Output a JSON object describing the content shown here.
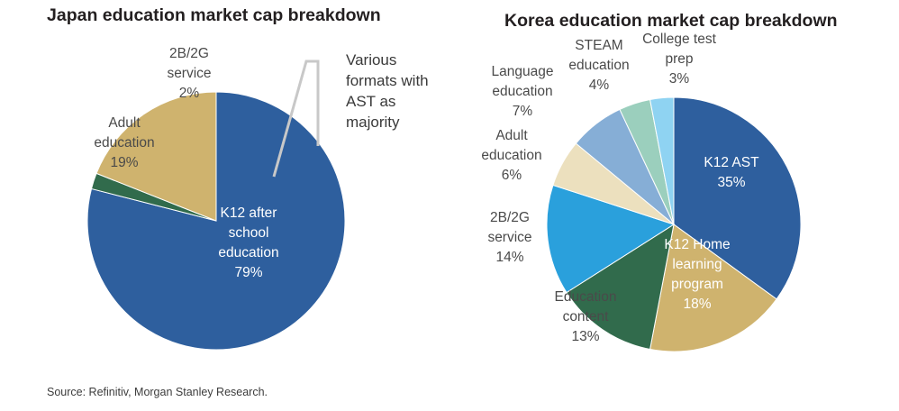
{
  "footer": {
    "source": "Source: Refinitiv, Morgan Stanley Research."
  },
  "chart_data": [
    {
      "type": "pie",
      "title": "Japan education market cap breakdown",
      "unit": "%",
      "slices": [
        {
          "label": [
            "K12 after",
            "school",
            "education"
          ],
          "value": 79,
          "pct_label": "79%",
          "color": "#2e5f9e"
        },
        {
          "label": [
            "2B/2G",
            "service"
          ],
          "value": 2,
          "pct_label": "2%",
          "color": "#316b4c"
        },
        {
          "label": [
            "Adult",
            "education"
          ],
          "value": 19,
          "pct_label": "19%",
          "color": "#cfb36e"
        }
      ],
      "annotation": [
        "Various",
        "formats with",
        "AST as",
        "majority"
      ]
    },
    {
      "type": "pie",
      "title": "Korea education market cap breakdown",
      "unit": "%",
      "slices": [
        {
          "label": [
            "K12 AST"
          ],
          "value": 35,
          "pct_label": "35%",
          "color": "#2e5f9e"
        },
        {
          "label": [
            "K12 Home",
            "learning",
            "program"
          ],
          "value": 18,
          "pct_label": "18%",
          "color": "#cfb36e"
        },
        {
          "label": [
            "Education",
            "content"
          ],
          "value": 13,
          "pct_label": "13%",
          "color": "#316b4c"
        },
        {
          "label": [
            "2B/2G",
            "service"
          ],
          "value": 14,
          "pct_label": "14%",
          "color": "#2aa0dc"
        },
        {
          "label": [
            "Adult",
            "education"
          ],
          "value": 6,
          "pct_label": "6%",
          "color": "#ece0be"
        },
        {
          "label": [
            "Language",
            "education"
          ],
          "value": 7,
          "pct_label": "7%",
          "color": "#86aed6"
        },
        {
          "label": [
            "STEAM",
            "education"
          ],
          "value": 4,
          "pct_label": "4%",
          "color": "#9bcfbd"
        },
        {
          "label": [
            "College test",
            "prep"
          ],
          "value": 3,
          "pct_label": "3%",
          "color": "#8fd3f2"
        }
      ]
    }
  ]
}
